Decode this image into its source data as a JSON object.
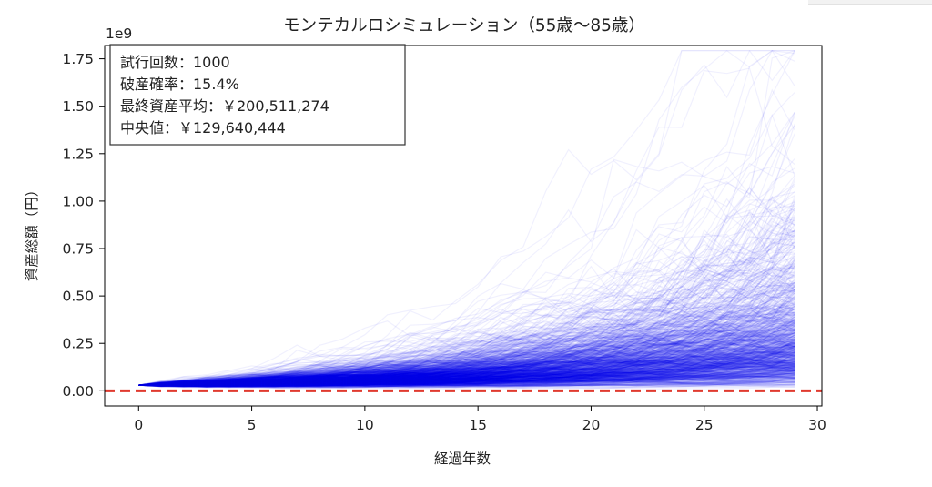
{
  "chart_data": {
    "type": "line",
    "title": "モンテカルロシミュレーション（55歳〜85歳）",
    "xlabel": "経過年数",
    "ylabel": "資産総額（円）",
    "y_offset_label": "1e9",
    "xlim": [
      -1.5,
      30.2
    ],
    "ylim": [
      -0.08,
      1.82
    ],
    "x_ticks": [
      0,
      5,
      10,
      15,
      20,
      25,
      30
    ],
    "x_tick_labels": [
      "0",
      "5",
      "10",
      "15",
      "20",
      "25",
      "30"
    ],
    "y_ticks": [
      0,
      0.25,
      0.5,
      0.75,
      1.0,
      1.25,
      1.5,
      1.75
    ],
    "y_tick_labels": [
      "0.00",
      "0.25",
      "0.50",
      "0.75",
      "1.00",
      "1.25",
      "1.50",
      "1.75"
    ],
    "grid": false,
    "trials": 1000,
    "years": 29,
    "start_value": 0.03,
    "reference_line": {
      "y": 0,
      "style": "dashed",
      "color": "#e03a2f"
    },
    "series_color": "#0000ee",
    "annotation_position": "top-left",
    "stats_box": [
      "試行回数：1000",
      "破産確率：15.4%",
      "最終資産平均：￥200,511,274",
      "中央値：￥129,640,444"
    ]
  }
}
